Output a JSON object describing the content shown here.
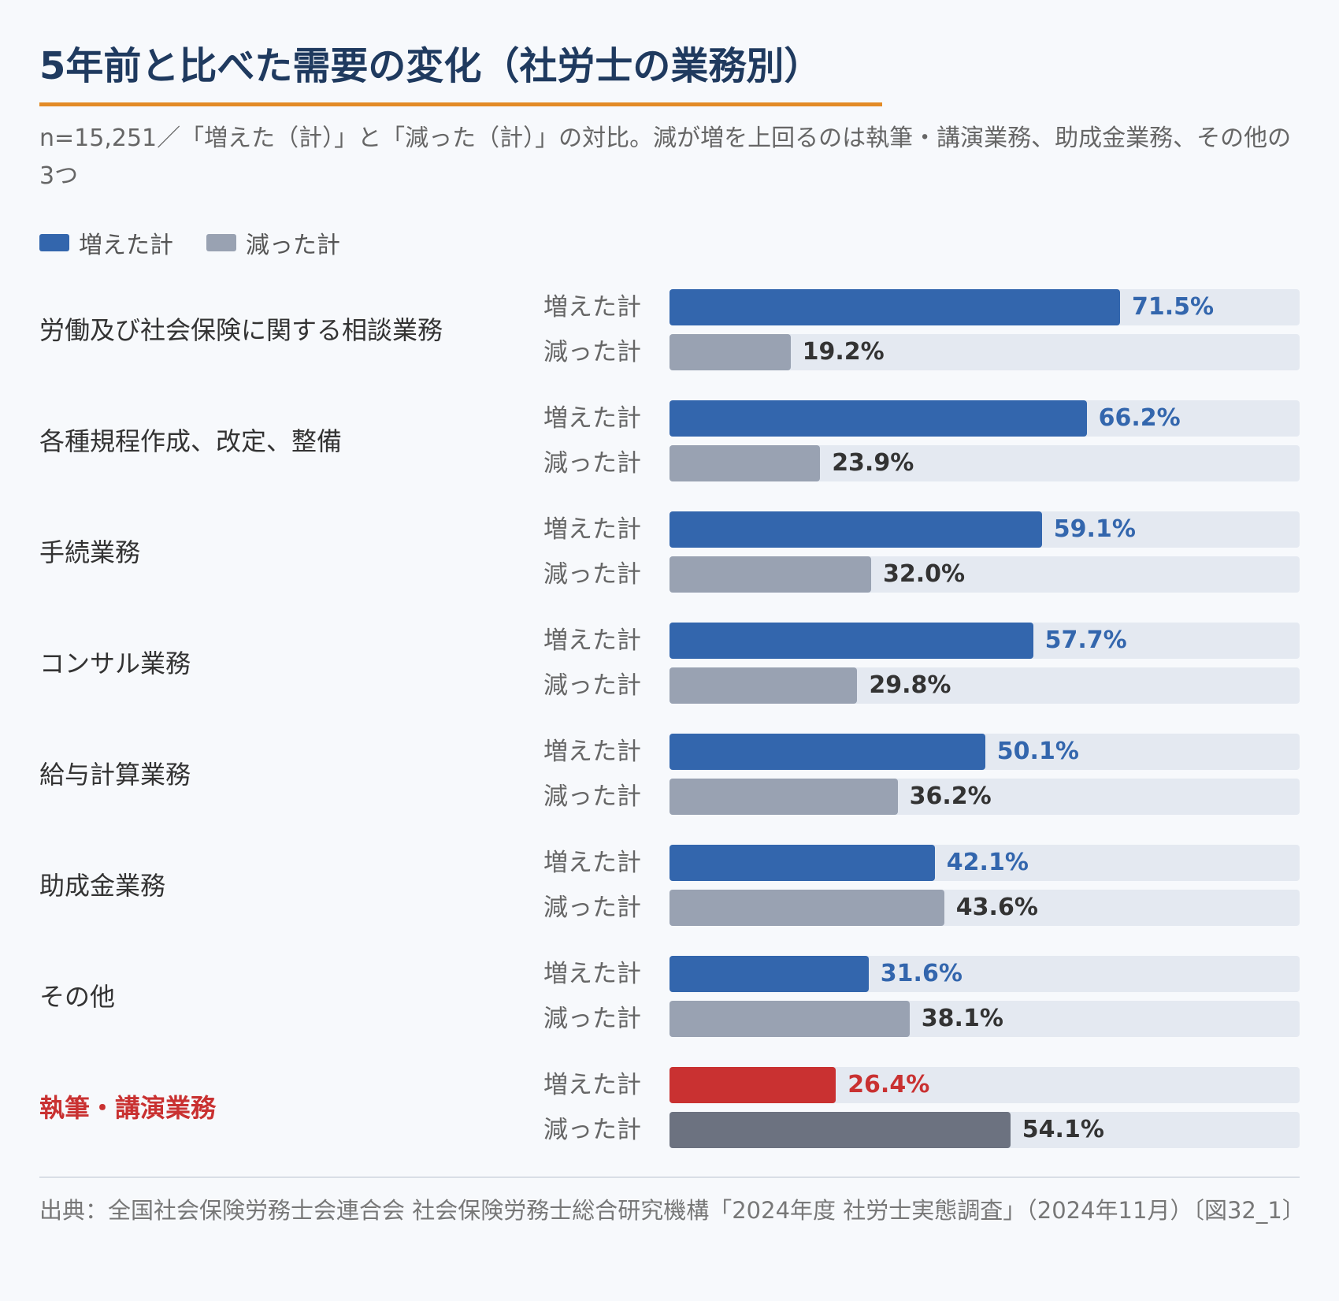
{
  "title": "5年前と比べた需要の変化（社労士の業務別）",
  "subtitle": "n=15,251／「増えた（計）」と「減った（計）」の対比。減が増を上回るのは執筆・講演業務、助成金業務、その他の3つ",
  "legend": [
    {
      "label": "増えた計",
      "color": "#3366ad"
    },
    {
      "label": "減った計",
      "color": "#99a2b2"
    }
  ],
  "source": "出典：全国社会保険労務士会連合会 社会保険労務士総合研究機構「2024年度 社労士実態調査」（2024年11月）〔図32_1〕",
  "colors": {
    "increase": "#3366ad",
    "decrease": "#99a2b2",
    "increase_highlight": "#c93131",
    "decrease_highlight": "#6c7280",
    "increase_text": "#3366ad",
    "decrease_text": "#333333",
    "highlight_text": "#c93131"
  },
  "chart_data": {
    "type": "bar",
    "orientation": "horizontal",
    "unit": "%",
    "xlim": [
      0,
      100
    ],
    "categories": [
      "労働及び社会保険に関する相談業務",
      "各種規程作成、改定、整備",
      "手続業務",
      "コンサル業務",
      "給与計算業務",
      "助成金業務",
      "その他",
      "執筆・講演業務"
    ],
    "highlight_category": "執筆・講演業務",
    "series": [
      {
        "name": "増えた計",
        "values": [
          71.5,
          66.2,
          59.1,
          57.7,
          50.1,
          42.1,
          31.6,
          26.4
        ]
      },
      {
        "name": "減った計",
        "values": [
          19.2,
          23.9,
          32.0,
          29.8,
          36.2,
          43.6,
          38.1,
          54.1
        ]
      }
    ]
  }
}
